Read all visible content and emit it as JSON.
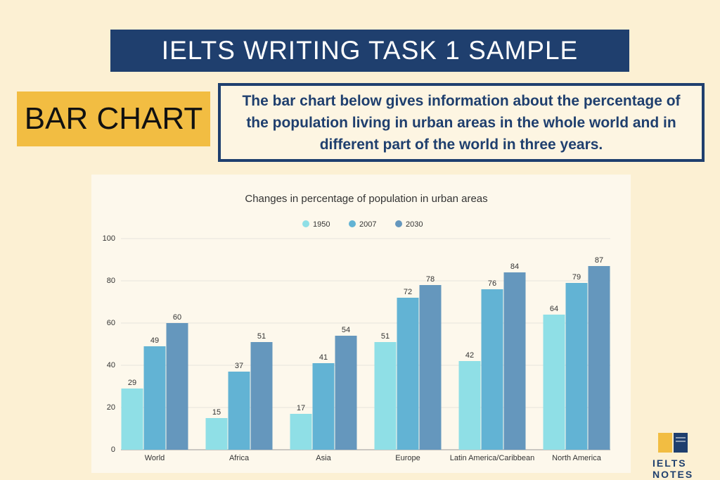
{
  "header": {
    "title": "IELTS WRITING TASK 1 SAMPLE"
  },
  "badge": "BAR CHART",
  "description": "The bar chart below gives information about the percentage of the population living in urban areas in the whole world and in different part of the world in three years.",
  "chart_data": {
    "type": "bar",
    "title": "Changes in percentage of population in urban areas",
    "categories": [
      "World",
      "Africa",
      "Asia",
      "Europe",
      "Latin America/Caribbean",
      "North America"
    ],
    "series": [
      {
        "name": "1950",
        "color": "#8fdfe6",
        "values": [
          29,
          15,
          17,
          51,
          42,
          64
        ]
      },
      {
        "name": "2007",
        "color": "#62b3d4",
        "values": [
          49,
          37,
          41,
          72,
          76,
          79
        ]
      },
      {
        "name": "2030",
        "color": "#6597bd",
        "values": [
          60,
          51,
          54,
          78,
          84,
          87
        ]
      }
    ],
    "ylim": [
      0,
      100
    ],
    "yticks": [
      0,
      20,
      40,
      60,
      80,
      100
    ],
    "grid": true,
    "legend": "top"
  },
  "logo": "IELTS NOTES"
}
